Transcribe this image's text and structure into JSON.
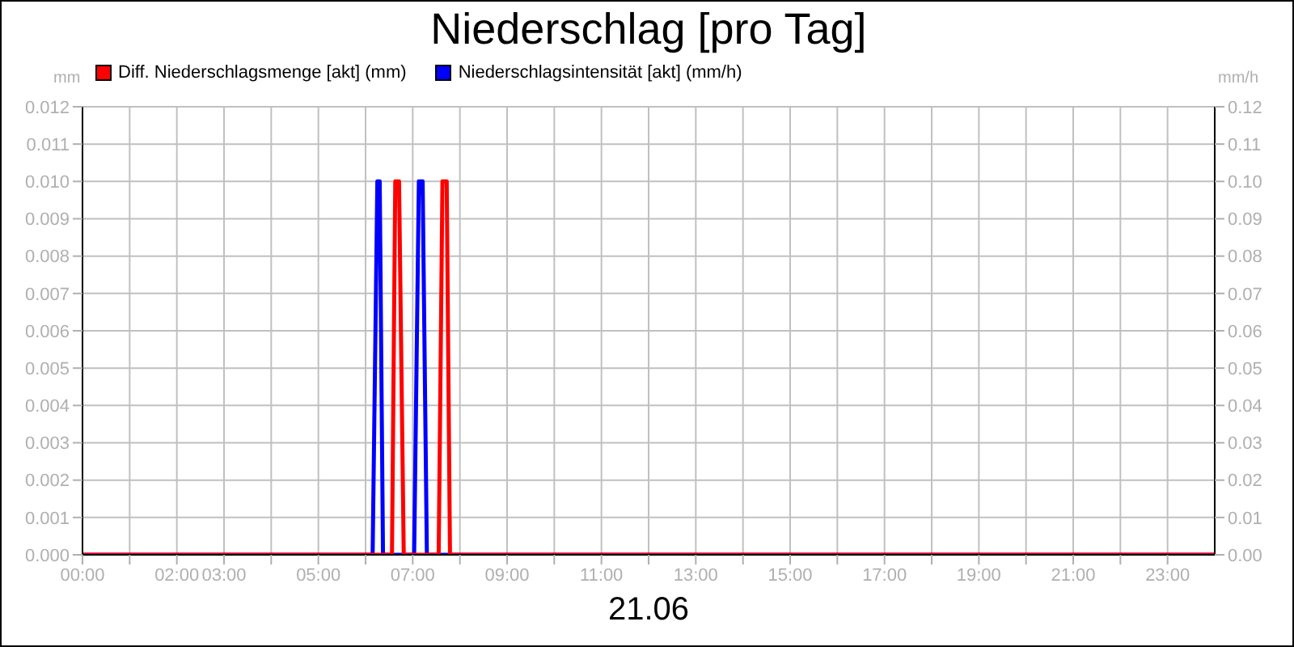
{
  "chart_data": {
    "type": "line",
    "title": "Niederschlag [pro Tag]",
    "xlabel": "21.06",
    "ylabel": "mm",
    "y2label": "mm/h",
    "series": [
      {
        "name": "Niederschlagsintensität [akt] (mm/h)",
        "color": "#0000ff",
        "axis": "y2",
        "x": [
          0,
          6.15,
          6.25,
          6.3,
          6.37,
          7.03,
          7.13,
          7.21,
          7.3,
          24
        ],
        "values": [
          0,
          0,
          0.1,
          0.1,
          0,
          0,
          0.1,
          0.1,
          0,
          0
        ]
      },
      {
        "name": "Diff. Niederschlagsmenge [akt] (mm)",
        "color": "#ff0000",
        "x": [
          0,
          6.56,
          6.63,
          6.71,
          6.81,
          7.55,
          7.63,
          7.72,
          7.79,
          24
        ],
        "values": [
          0,
          0,
          0.01,
          0.01,
          0,
          0,
          0.01,
          0.01,
          0,
          0
        ]
      }
    ],
    "xlim": [
      0,
      24
    ],
    "xticks": [
      {
        "value": 0,
        "label": "00:00"
      },
      {
        "value": 1,
        "label": null
      },
      {
        "value": 2,
        "label": "02:00"
      },
      {
        "value": 3,
        "label": "03:00"
      },
      {
        "value": 4,
        "label": null
      },
      {
        "value": 5,
        "label": "05:00"
      },
      {
        "value": 6,
        "label": null
      },
      {
        "value": 7,
        "label": "07:00"
      },
      {
        "value": 8,
        "label": null
      },
      {
        "value": 9,
        "label": "09:00"
      },
      {
        "value": 10,
        "label": null
      },
      {
        "value": 11,
        "label": "11:00"
      },
      {
        "value": 12,
        "label": null
      },
      {
        "value": 13,
        "label": "13:00"
      },
      {
        "value": 14,
        "label": null
      },
      {
        "value": 15,
        "label": "15:00"
      },
      {
        "value": 16,
        "label": null
      },
      {
        "value": 17,
        "label": "17:00"
      },
      {
        "value": 18,
        "label": null
      },
      {
        "value": 19,
        "label": "19:00"
      },
      {
        "value": 20,
        "label": null
      },
      {
        "value": 21,
        "label": "21:00"
      },
      {
        "value": 22,
        "label": null
      },
      {
        "value": 23,
        "label": "23:00"
      }
    ],
    "ylim": [
      0,
      0.012
    ],
    "yticks": [
      {
        "value": 0,
        "label": "0.000"
      },
      {
        "value": 0.001,
        "label": "0.001"
      },
      {
        "value": 0.002,
        "label": "0.002"
      },
      {
        "value": 0.003,
        "label": "0.003"
      },
      {
        "value": 0.004,
        "label": "0.004"
      },
      {
        "value": 0.005,
        "label": "0.005"
      },
      {
        "value": 0.006,
        "label": "0.006"
      },
      {
        "value": 0.007,
        "label": "0.007"
      },
      {
        "value": 0.008,
        "label": "0.008"
      },
      {
        "value": 0.009,
        "label": "0.009"
      },
      {
        "value": 0.01,
        "label": "0.010"
      },
      {
        "value": 0.011,
        "label": "0.011"
      },
      {
        "value": 0.012,
        "label": "0.012"
      }
    ],
    "y2lim": [
      0,
      0.12
    ],
    "y2ticks": [
      {
        "value": 0,
        "label": "0.00"
      },
      {
        "value": 0.01,
        "label": "0.01"
      },
      {
        "value": 0.02,
        "label": "0.02"
      },
      {
        "value": 0.03,
        "label": "0.03"
      },
      {
        "value": 0.04,
        "label": "0.04"
      },
      {
        "value": 0.05,
        "label": "0.05"
      },
      {
        "value": 0.06,
        "label": "0.06"
      },
      {
        "value": 0.07,
        "label": "0.07"
      },
      {
        "value": 0.08,
        "label": "0.08"
      },
      {
        "value": 0.09,
        "label": "0.09"
      },
      {
        "value": 0.1,
        "label": "0.10"
      },
      {
        "value": 0.11,
        "label": "0.11"
      },
      {
        "value": 0.12,
        "label": "0.12"
      }
    ],
    "grid": true,
    "legend": "top left",
    "marker": "none",
    "line_style": "solid"
  }
}
